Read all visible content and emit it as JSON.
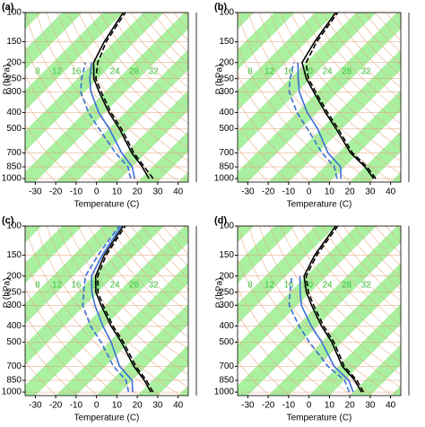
{
  "chart_data": [
    {
      "type": "skewt",
      "panel": "(a)",
      "x_label": "Temperature (C)",
      "y_label": "P (hPa)",
      "xlim": [
        -35,
        45
      ],
      "xticks": [
        -30,
        -20,
        -10,
        0,
        10,
        20,
        30,
        40
      ],
      "ylim": [
        1050,
        100
      ],
      "yticks": [
        100,
        150,
        200,
        250,
        300,
        400,
        500,
        700,
        850,
        1000
      ],
      "log_y": true,
      "mixing_ratio_labels": [
        "8",
        "12",
        "16",
        "20",
        "24",
        "28",
        "32"
      ],
      "pressure_levels": [
        1000,
        850,
        700,
        500,
        400,
        300,
        250,
        200,
        150,
        100
      ],
      "series": [
        {
          "color": "#000000",
          "dash": false,
          "values": [
            24,
            15,
            3,
            -15,
            -28,
            -43,
            -52,
            -60,
            -65,
            -70
          ]
        },
        {
          "color": "#000000",
          "dash": true,
          "values": [
            26,
            16,
            4,
            -14,
            -27,
            -42,
            -51,
            -58,
            -64,
            -69
          ]
        },
        {
          "color": "#3a6fd8",
          "dash": false,
          "values": [
            17,
            10,
            -2,
            -20,
            -33,
            -47,
            -54,
            -61,
            null,
            null
          ]
        },
        {
          "color": "#3a6fd8",
          "dash": true,
          "values": [
            15,
            8,
            -5,
            -25,
            -38,
            -52,
            -58,
            -64,
            null,
            null
          ]
        }
      ]
    },
    {
      "type": "skewt",
      "panel": "(b)",
      "x_label": "Temperature (C)",
      "y_label": "P (hPa)",
      "xlim": [
        -35,
        45
      ],
      "xticks": [
        -30,
        -20,
        -10,
        0,
        10,
        20,
        30,
        40
      ],
      "ylim": [
        1050,
        100
      ],
      "yticks": [
        100,
        150,
        200,
        250,
        300,
        400,
        500,
        700,
        850,
        1000
      ],
      "log_y": true,
      "mixing_ratio_labels": [
        "8",
        "12",
        "16",
        "20",
        "24",
        "28",
        "32"
      ],
      "pressure_levels": [
        1000,
        850,
        700,
        500,
        400,
        300,
        250,
        200,
        150,
        100
      ],
      "series": [
        {
          "color": "#000000",
          "dash": false,
          "values": [
            30,
            20,
            6,
            -13,
            -26,
            -42,
            -52,
            -62,
            -66,
            -70
          ]
        },
        {
          "color": "#000000",
          "dash": true,
          "values": [
            31,
            21,
            7,
            -12,
            -25,
            -41,
            -51,
            -60,
            -65,
            -69
          ]
        },
        {
          "color": "#3a6fd8",
          "dash": false,
          "values": [
            14,
            8,
            -5,
            -22,
            -35,
            -49,
            -56,
            -64,
            null,
            null
          ]
        },
        {
          "color": "#3a6fd8",
          "dash": true,
          "values": [
            12,
            5,
            -8,
            -27,
            -40,
            -54,
            -60,
            -66,
            null,
            null
          ]
        }
      ]
    },
    {
      "type": "skewt",
      "panel": "(c)",
      "x_label": "Temperature (C)",
      "y_label": "P (hPa)",
      "xlim": [
        -35,
        45
      ],
      "xticks": [
        -30,
        -20,
        -10,
        0,
        10,
        20,
        30,
        40
      ],
      "ylim": [
        1050,
        100
      ],
      "yticks": [
        100,
        150,
        200,
        250,
        300,
        400,
        500,
        700,
        850,
        1000
      ],
      "log_y": true,
      "mixing_ratio_labels": [
        "8",
        "12",
        "16",
        "20",
        "24",
        "28",
        "32"
      ],
      "pressure_levels": [
        1000,
        850,
        700,
        500,
        400,
        300,
        250,
        200,
        150,
        100
      ],
      "series": [
        {
          "color": "#000000",
          "dash": false,
          "values": [
            25,
            16,
            4,
            -14,
            -27,
            -42,
            -51,
            -59,
            -65,
            -70
          ]
        },
        {
          "color": "#000000",
          "dash": true,
          "values": [
            26,
            17,
            5,
            -13,
            -26,
            -41,
            -50,
            -58,
            -64,
            -69
          ]
        },
        {
          "color": "#3a6fd8",
          "dash": false,
          "values": [
            16,
            10,
            -3,
            -19,
            -31,
            -45,
            -53,
            -61,
            -66,
            -71
          ]
        },
        {
          "color": "#3a6fd8",
          "dash": true,
          "values": [
            14,
            7,
            -6,
            -24,
            -37,
            -51,
            -57,
            -64,
            -68,
            -72
          ]
        }
      ]
    },
    {
      "type": "skewt",
      "panel": "(d)",
      "x_label": "Temperature (C)",
      "y_label": "P (hPa)",
      "xlim": [
        -35,
        45
      ],
      "xticks": [
        -30,
        -20,
        -10,
        0,
        10,
        20,
        30,
        40
      ],
      "ylim": [
        1050,
        100
      ],
      "yticks": [
        100,
        150,
        200,
        250,
        300,
        400,
        500,
        700,
        850,
        1000
      ],
      "log_y": true,
      "mixing_ratio_labels": [
        "8",
        "12",
        "16",
        "20",
        "24",
        "28",
        "32"
      ],
      "pressure_levels": [
        1000,
        850,
        700,
        500,
        400,
        300,
        250,
        200,
        150,
        100
      ],
      "series": [
        {
          "color": "#000000",
          "dash": false,
          "values": [
            24,
            15,
            2,
            -15,
            -28,
            -43,
            -52,
            -61,
            -66,
            -70
          ]
        },
        {
          "color": "#000000",
          "dash": true,
          "values": [
            25,
            16,
            3,
            -14,
            -27,
            -42,
            -51,
            -60,
            -65,
            -69
          ]
        },
        {
          "color": "#3a6fd8",
          "dash": false,
          "values": [
            20,
            12,
            -2,
            -20,
            -33,
            -48,
            -55,
            -63,
            null,
            null
          ]
        },
        {
          "color": "#3a6fd8",
          "dash": true,
          "values": [
            18,
            10,
            -5,
            -26,
            -39,
            -54,
            -60,
            -67,
            null,
            null
          ]
        }
      ]
    }
  ]
}
